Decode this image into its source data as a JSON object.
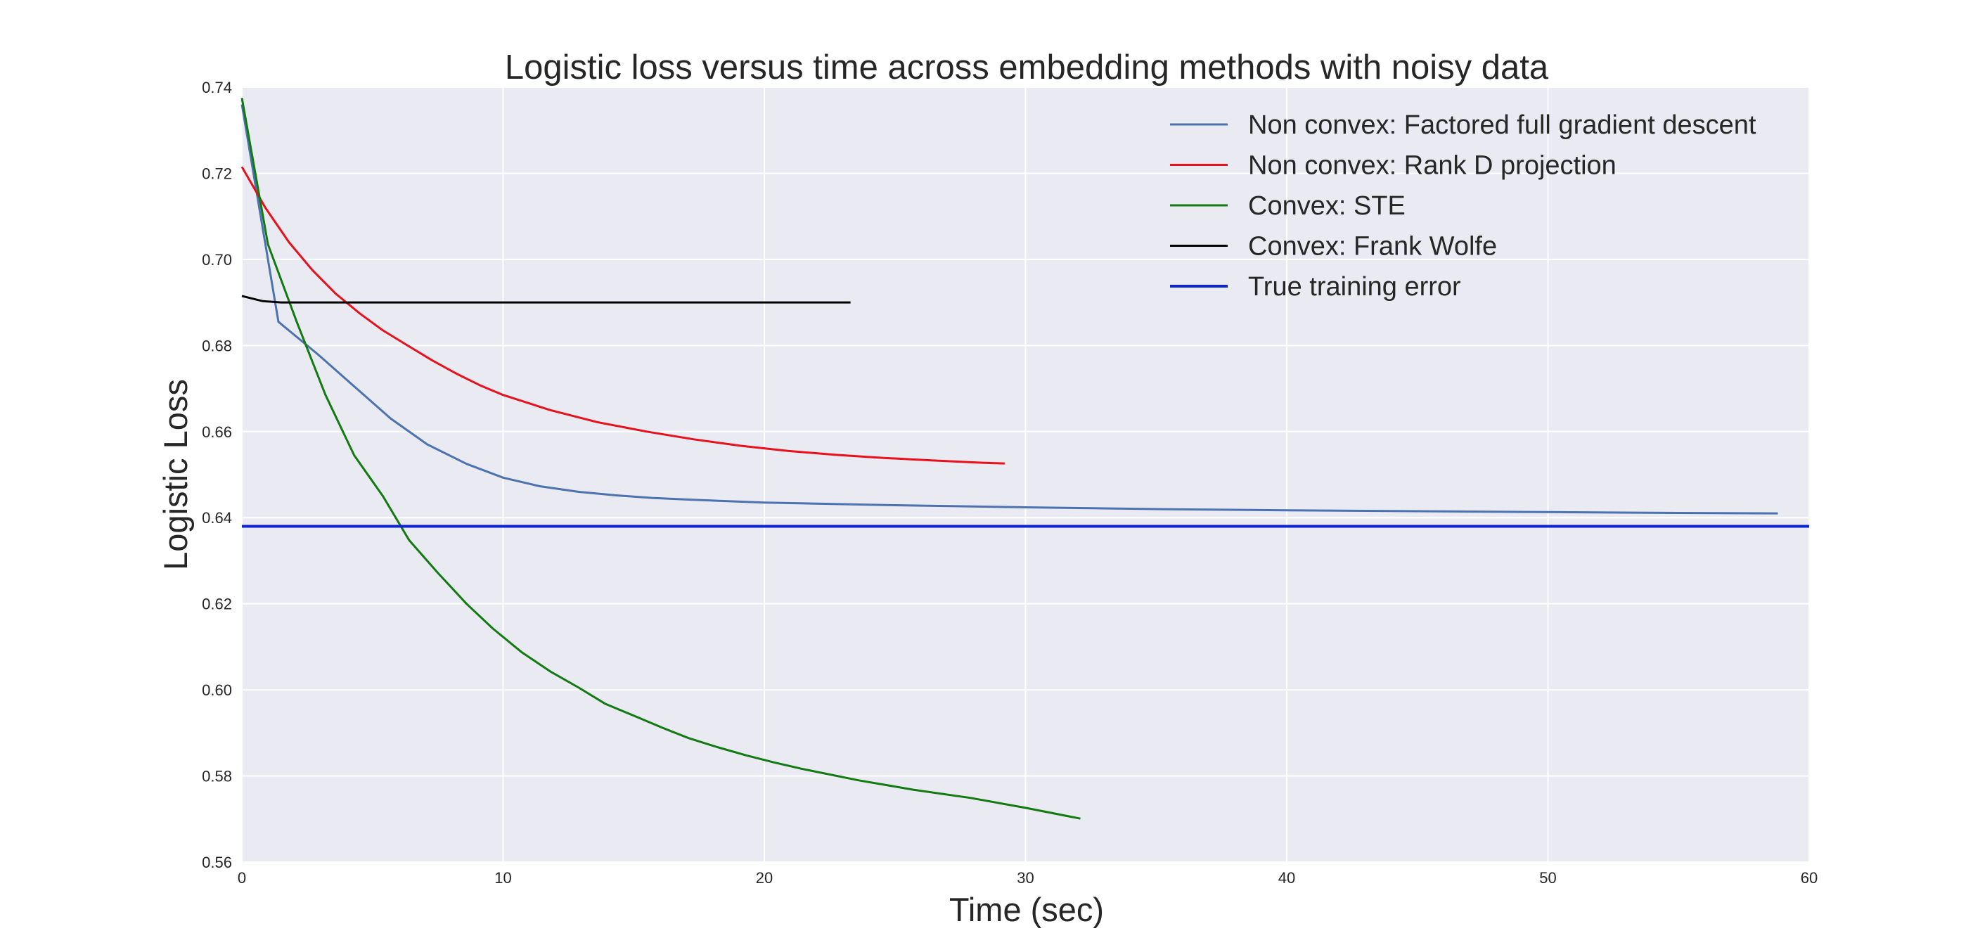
{
  "chart_data": {
    "type": "line",
    "title": "Logistic loss versus time across embedding methods with noisy data",
    "xlabel": "Time (sec)",
    "ylabel": "Logistic Loss",
    "xlim": [
      0,
      60
    ],
    "ylim": [
      0.56,
      0.74
    ],
    "xticks": [
      0,
      10,
      20,
      30,
      40,
      50,
      60
    ],
    "xtick_labels": [
      "0",
      "10",
      "20",
      "30",
      "40",
      "50",
      "60"
    ],
    "yticks": [
      0.56,
      0.58,
      0.6,
      0.62,
      0.64,
      0.66,
      0.68,
      0.7,
      0.72,
      0.74
    ],
    "ytick_labels": [
      "0.56",
      "0.58",
      "0.60",
      "0.62",
      "0.64",
      "0.66",
      "0.68",
      "0.70",
      "0.72",
      "0.74"
    ],
    "grid": true,
    "legend_position": "top-right",
    "background": "#eaeaf2",
    "series": [
      {
        "name": "Non convex: Factored full gradient descent",
        "color": "#4c72b0",
        "x": [
          0,
          1.4,
          2.1,
          2.9,
          4.3,
          5.7,
          7.1,
          8.6,
          10.0,
          11.4,
          12.9,
          14.3,
          15.7,
          17.1,
          20.0,
          25.0,
          30.0,
          35.0,
          40.0,
          45.0,
          50.0,
          55.0,
          58.8
        ],
        "y": [
          0.736,
          0.6855,
          0.682,
          0.678,
          0.6705,
          0.663,
          0.657,
          0.6525,
          0.6493,
          0.6473,
          0.646,
          0.6452,
          0.6446,
          0.6442,
          0.6435,
          0.6429,
          0.6424,
          0.642,
          0.6417,
          0.6415,
          0.6413,
          0.6411,
          0.641
        ]
      },
      {
        "name": "Non convex: Rank D projection",
        "color": "#e8101a",
        "x": [
          0,
          0.9,
          1.8,
          2.7,
          3.6,
          4.5,
          5.4,
          6.4,
          7.3,
          8.2,
          9.1,
          10.0,
          11.8,
          13.6,
          15.5,
          17.3,
          19.1,
          20.9,
          22.7,
          24.5,
          26.4,
          28.2,
          29.2
        ],
        "y": [
          0.7215,
          0.712,
          0.704,
          0.6975,
          0.692,
          0.6875,
          0.6835,
          0.6798,
          0.6765,
          0.6735,
          0.6708,
          0.6685,
          0.665,
          0.6622,
          0.66,
          0.6582,
          0.6567,
          0.6555,
          0.6546,
          0.6539,
          0.6533,
          0.6528,
          0.6526
        ]
      },
      {
        "name": "Convex: STE",
        "color": "#117a11",
        "x": [
          0,
          1.0,
          2.1,
          3.2,
          4.3,
          5.4,
          6.4,
          7.5,
          8.6,
          9.6,
          10.7,
          11.8,
          12.9,
          13.9,
          15.0,
          16.1,
          17.1,
          18.2,
          19.3,
          20.4,
          21.4,
          23.6,
          25.7,
          27.9,
          30.0,
          32.1
        ],
        "y": [
          0.7375,
          0.7035,
          0.6855,
          0.6685,
          0.6545,
          0.645,
          0.6348,
          0.6272,
          0.62,
          0.6143,
          0.6088,
          0.6043,
          0.6005,
          0.5968,
          0.594,
          0.5912,
          0.5888,
          0.5867,
          0.5848,
          0.5831,
          0.5817,
          0.579,
          0.5768,
          0.5749,
          0.5726,
          0.5701
        ]
      },
      {
        "name": "Convex: Frank Wolfe",
        "color": "#000000",
        "x": [
          0,
          0.8,
          1.5,
          3.0,
          6.0,
          10.0,
          15.0,
          20.0,
          23.3
        ],
        "y": [
          0.6915,
          0.6903,
          0.69,
          0.69,
          0.69,
          0.69,
          0.69,
          0.69,
          0.69
        ]
      },
      {
        "name": "True training error",
        "color": "#0c23d6",
        "x": [
          0,
          60
        ],
        "y": [
          0.638,
          0.638
        ]
      }
    ]
  }
}
